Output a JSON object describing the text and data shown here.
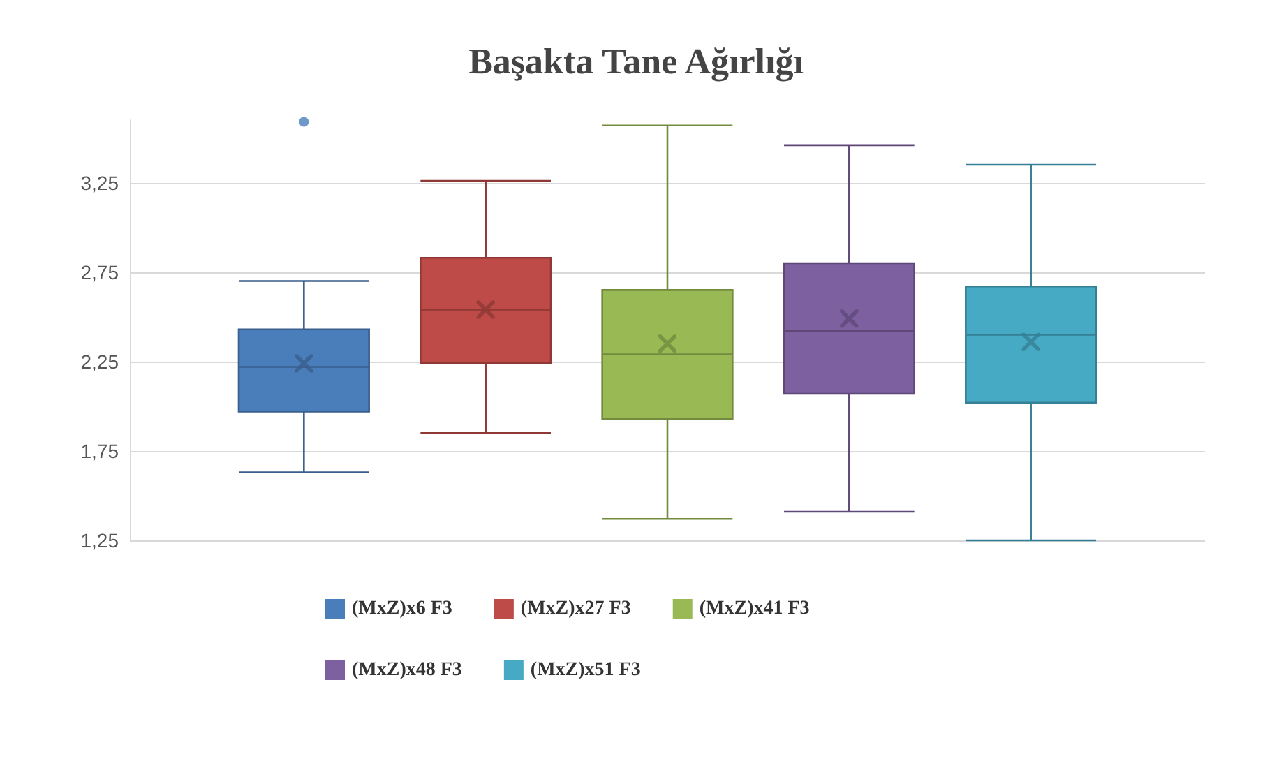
{
  "chart_data": {
    "type": "box",
    "title": "Başakta Tane Ağırlığı",
    "categories": [
      null
    ],
    "series": [
      {
        "name": "(MxZ)x6 F3",
        "color": "#4a7ebb",
        "boxes": [
          {
            "low": 1.63,
            "q1": 1.97,
            "median": 2.22,
            "q3": 2.43,
            "high": 2.7,
            "mean": 2.24,
            "outliers": [
              3.59
            ]
          }
        ]
      },
      {
        "name": "(MxZ)x27 F3",
        "color": "#be4b48",
        "boxes": [
          {
            "low": 1.85,
            "q1": 2.24,
            "median": 2.54,
            "q3": 2.83,
            "high": 3.26,
            "mean": 2.54
          }
        ]
      },
      {
        "name": "(MxZ)x41 F3",
        "color": "#98b954",
        "boxes": [
          {
            "low": 1.37,
            "q1": 1.93,
            "median": 2.29,
            "q3": 2.65,
            "high": 3.57,
            "mean": 2.35
          }
        ]
      },
      {
        "name": "(MxZ)x48 F3",
        "color": "#7d60a0",
        "boxes": [
          {
            "low": 1.41,
            "q1": 2.07,
            "median": 2.42,
            "q3": 2.8,
            "high": 3.46,
            "mean": 2.49
          }
        ]
      },
      {
        "name": "(MxZ)x51 F3",
        "color": "#46aac5",
        "boxes": [
          {
            "low": 1.25,
            "q1": 2.02,
            "median": 2.4,
            "q3": 2.67,
            "high": 3.35,
            "mean": 2.36
          }
        ]
      }
    ],
    "ylim": [
      1.25,
      3.6
    ],
    "yticks": [
      {
        "value": 1.25,
        "label": "1,25"
      },
      {
        "value": 1.75,
        "label": "1,75"
      },
      {
        "value": 2.25,
        "label": "2,25"
      },
      {
        "value": 2.75,
        "label": "2,75"
      },
      {
        "value": 3.25,
        "label": "3,25"
      }
    ],
    "grid": "y",
    "legend": "bottom"
  }
}
